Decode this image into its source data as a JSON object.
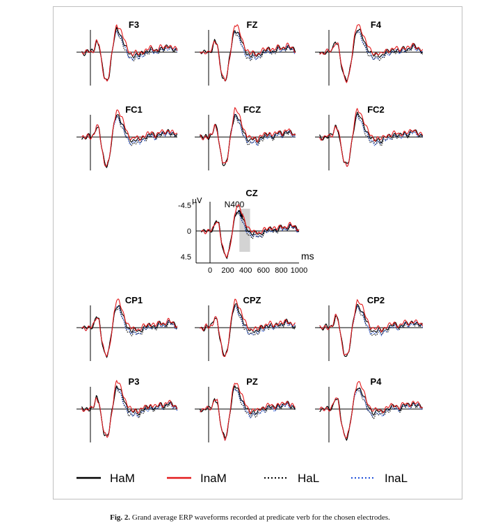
{
  "figure": {
    "caption_label": "Fig. 2.",
    "caption_text": "Grand average ERP waveforms recorded at predicate verb for the chosen electrodes."
  },
  "legend": [
    {
      "name": "HaM",
      "color": "#000000",
      "style": "solid"
    },
    {
      "name": "InaM",
      "color": "#e31a1c",
      "style": "solid"
    },
    {
      "name": "HaL",
      "color": "#000000",
      "style": "dotted"
    },
    {
      "name": "InaL",
      "color": "#1f4fd8",
      "style": "dotted"
    }
  ],
  "cz_axes": {
    "unit": "µV",
    "x_unit": "ms",
    "y_ticks": [
      "-4.5",
      "0",
      "4.5"
    ],
    "x_ticks": [
      "0",
      "200",
      "400",
      "600",
      "800",
      "1000"
    ],
    "annotation": "N400",
    "window_ms": [
      330,
      450
    ]
  },
  "chart_data": [
    {
      "type": "line",
      "title": "F3",
      "y_inverted": true
    },
    {
      "type": "line",
      "title": "FZ",
      "y_inverted": true
    },
    {
      "type": "line",
      "title": "F4",
      "y_inverted": true
    },
    {
      "type": "line",
      "title": "FC1",
      "y_inverted": true
    },
    {
      "type": "line",
      "title": "FCZ",
      "y_inverted": true
    },
    {
      "type": "line",
      "title": "FC2",
      "y_inverted": true
    },
    {
      "type": "line",
      "title": "CZ",
      "y_inverted": true,
      "ylim": [
        -4.5,
        4.5
      ],
      "xlim": [
        -100,
        1000
      ]
    },
    {
      "type": "line",
      "title": "CP1",
      "y_inverted": true
    },
    {
      "type": "line",
      "title": "CPZ",
      "y_inverted": true
    },
    {
      "type": "line",
      "title": "CP2",
      "y_inverted": true
    },
    {
      "type": "line",
      "title": "P3",
      "y_inverted": true
    },
    {
      "type": "line",
      "title": "PZ",
      "y_inverted": true
    },
    {
      "type": "line",
      "title": "P4",
      "y_inverted": true
    }
  ]
}
